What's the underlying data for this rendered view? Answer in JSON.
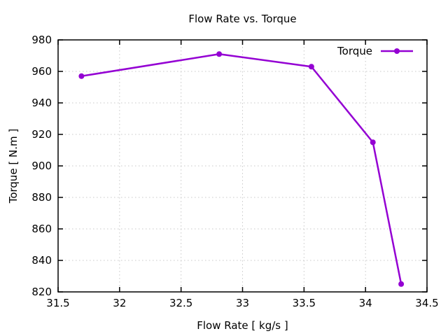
{
  "chart_data": {
    "type": "line",
    "title": "Flow Rate vs. Torque",
    "xlabel": "Flow Rate [ kg/s ]",
    "ylabel": "Torque [ N.m ]",
    "xlim": [
      31.5,
      34.5
    ],
    "ylim": [
      820,
      980
    ],
    "x_ticks": [
      31.5,
      32,
      32.5,
      33,
      33.5,
      34,
      34.5
    ],
    "x_tick_labels": [
      "31.5",
      "32",
      "32.5",
      "33",
      "33.5",
      "34",
      "34.5"
    ],
    "y_ticks": [
      820,
      840,
      860,
      880,
      900,
      920,
      940,
      960,
      980
    ],
    "y_tick_labels": [
      "820",
      "840",
      "860",
      "880",
      "900",
      "920",
      "940",
      "960",
      "980"
    ],
    "grid": true,
    "legend": {
      "position": "top-right",
      "label": "Torque",
      "boxed": false
    },
    "series": [
      {
        "name": "Torque",
        "color": "#9400d3",
        "marker": "circle",
        "marker_size": 4,
        "line_width": 2.5,
        "points": [
          {
            "x": 31.69,
            "y": 957
          },
          {
            "x": 32.81,
            "y": 971
          },
          {
            "x": 33.56,
            "y": 963
          },
          {
            "x": 34.06,
            "y": 915
          },
          {
            "x": 34.29,
            "y": 825
          }
        ]
      }
    ]
  },
  "colors": {
    "background": "#ffffff",
    "axis_border": "#000000",
    "grid": "#c8c8c8",
    "text": "#000000",
    "line": "#9400d3"
  }
}
